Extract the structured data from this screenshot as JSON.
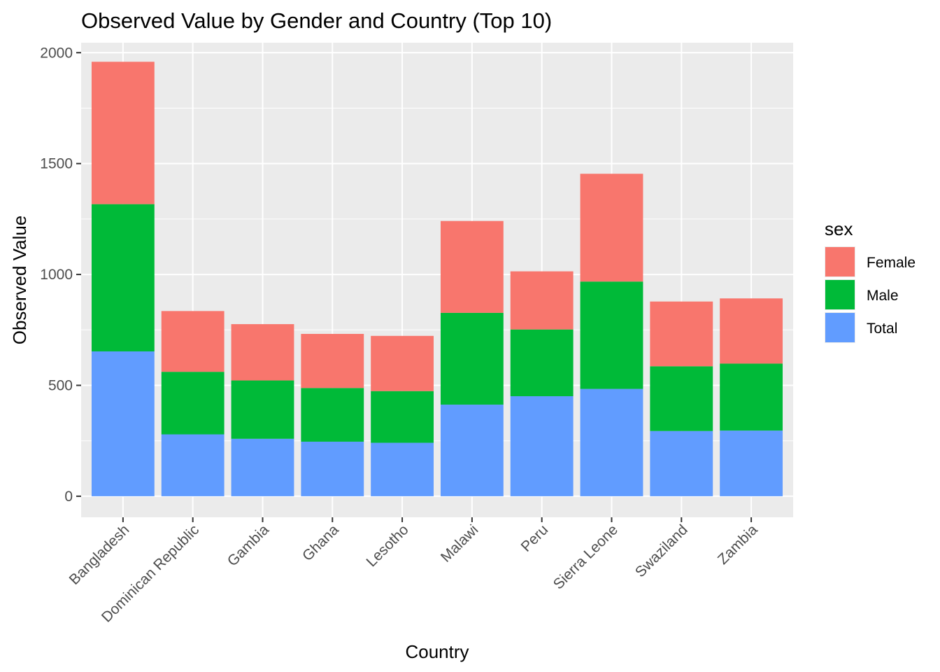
{
  "chart_data": {
    "type": "bar",
    "stacked": true,
    "title": "Observed Value by Gender and Country (Top 10)",
    "xlabel": "Country",
    "ylabel": "Observed Value",
    "ylim": [
      -95,
      2045
    ],
    "yticks": [
      "0",
      "500",
      "1000",
      "1500",
      "2000"
    ],
    "ytick_values": [
      0,
      500,
      1000,
      1500,
      2000
    ],
    "grid": true,
    "categories": [
      "Bangladesh",
      "Dominican Republic",
      "Gambia",
      "Ghana",
      "Lesotho",
      "Malawi",
      "Peru",
      "Sierra Leone",
      "Swaziland",
      "Zambia"
    ],
    "series": [
      {
        "name": "Total",
        "color": "#619CFF",
        "values": [
          653,
          279,
          259,
          246,
          241,
          413,
          451,
          484,
          294,
          296
        ]
      },
      {
        "name": "Male",
        "color": "#00BA38",
        "values": [
          664,
          282,
          263,
          242,
          233,
          414,
          301,
          484,
          292,
          302
        ]
      },
      {
        "name": "Female",
        "color": "#F8766D",
        "values": [
          642,
          274,
          254,
          244,
          249,
          414,
          262,
          486,
          292,
          294
        ]
      }
    ],
    "legend": {
      "title": "sex",
      "placement": "right",
      "entries": [
        {
          "label": "Female",
          "color": "#F8766D"
        },
        {
          "label": "Male",
          "color": "#00BA38"
        },
        {
          "label": "Total",
          "color": "#619CFF"
        }
      ]
    },
    "colors": {
      "panel_background": "#EBEBEB",
      "grid": "#FFFFFF",
      "tick_text": "#4D4D4D",
      "axis_tick": "#333333"
    }
  }
}
